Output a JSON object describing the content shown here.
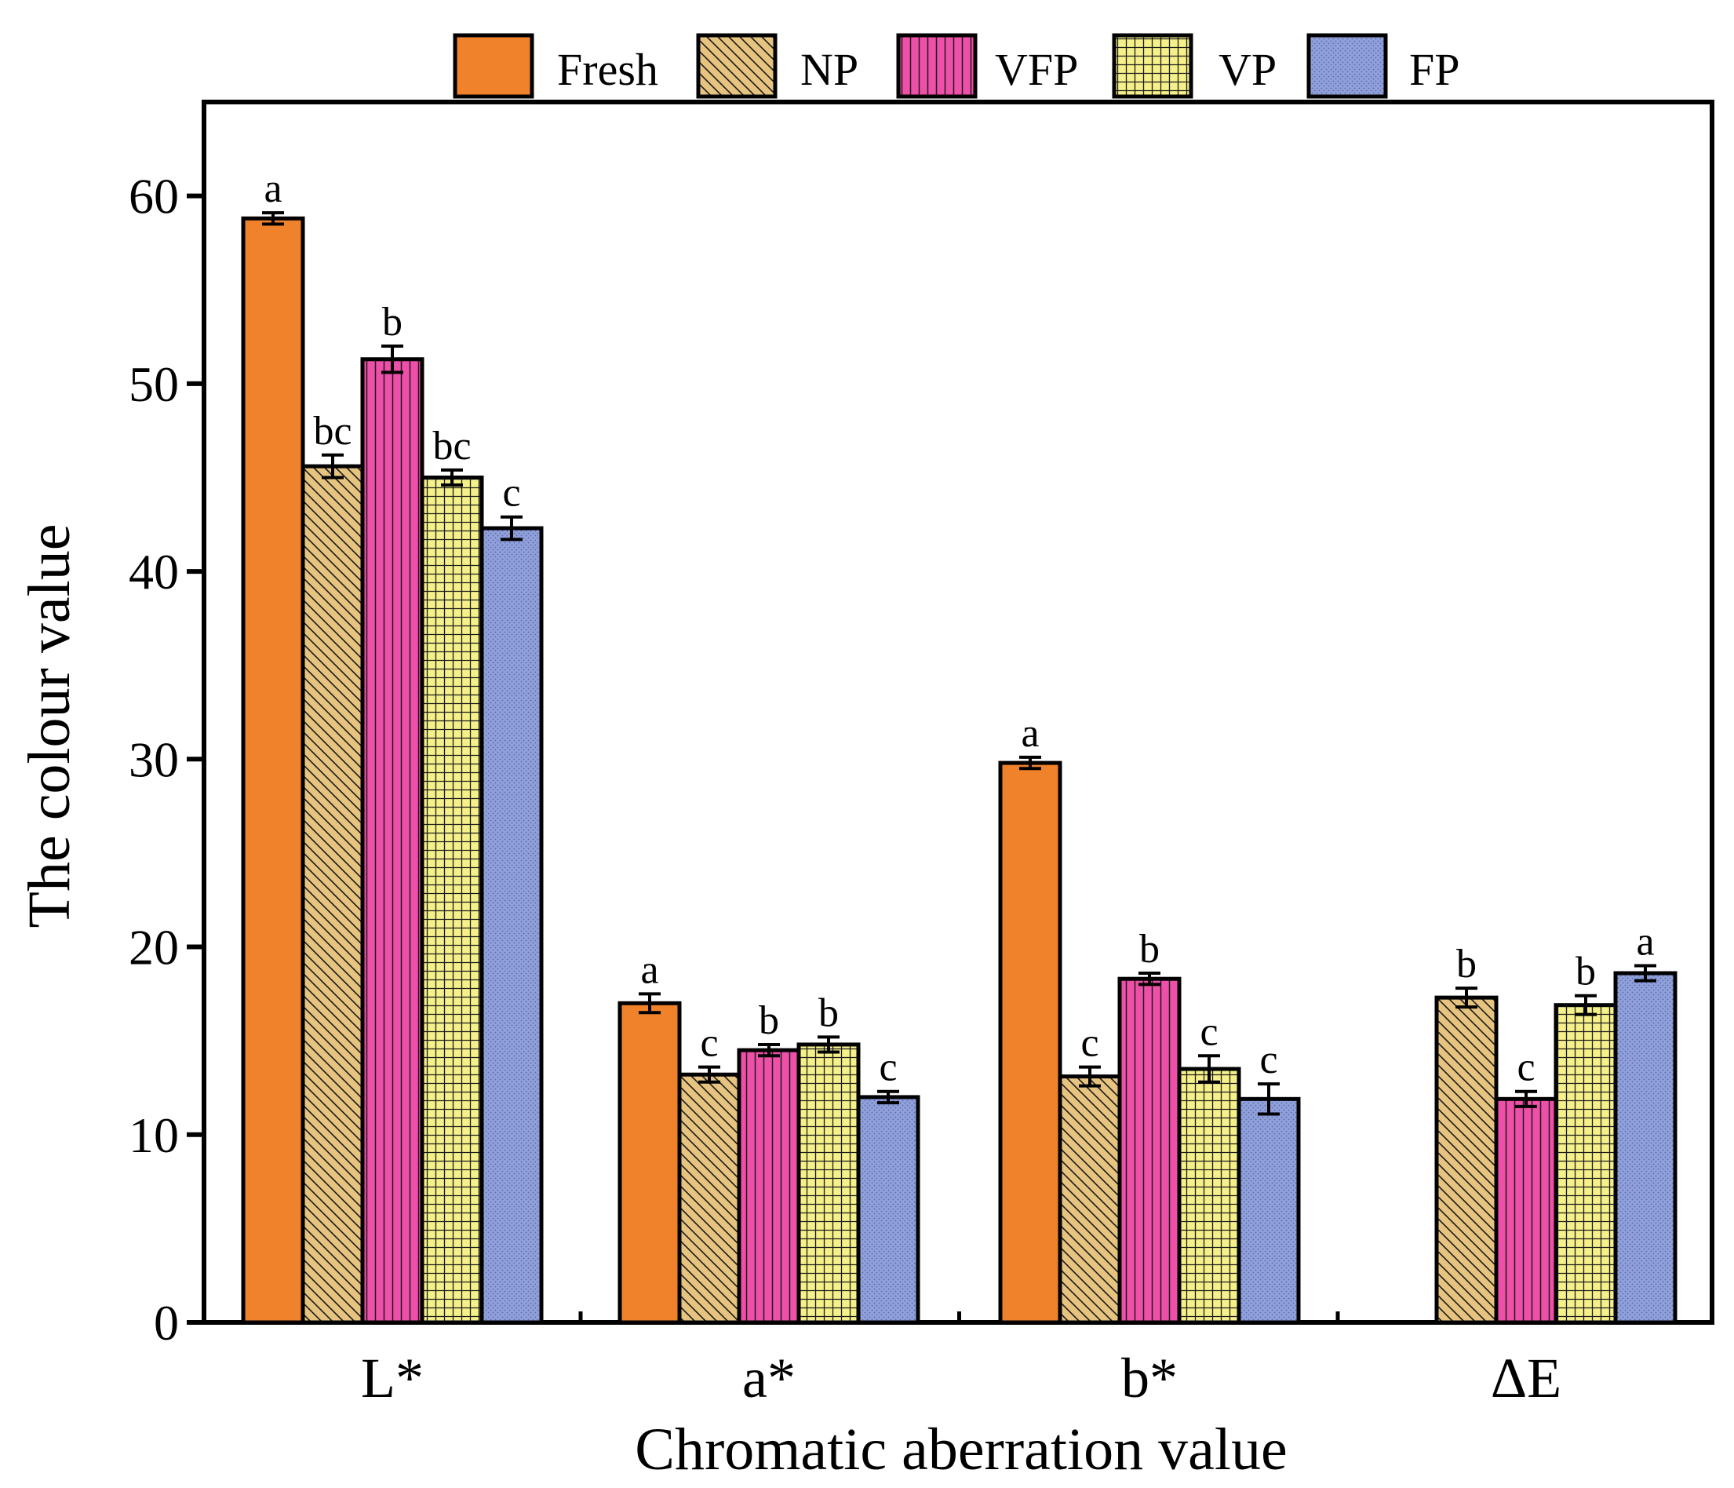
{
  "chart_data": {
    "type": "bar",
    "title": "",
    "xlabel": "Chromatic aberration value",
    "ylabel": "The colour value",
    "ylim": [
      0,
      65
    ],
    "yticks": [
      0,
      10,
      20,
      30,
      40,
      50,
      60
    ],
    "grid": false,
    "legend_position": "top",
    "categories": [
      "L*",
      "a*",
      "b*",
      "ΔE"
    ],
    "series": [
      {
        "name": "Fresh",
        "color": "#F0822B",
        "pattern": "solid",
        "values": [
          58.8,
          17.0,
          29.8,
          null
        ],
        "errors": [
          0.3,
          0.5,
          0.3,
          null
        ],
        "labels": [
          "a",
          "a",
          "a",
          ""
        ]
      },
      {
        "name": "NP",
        "color": "#E6C47F",
        "pattern": "diagonal",
        "values": [
          45.6,
          13.2,
          13.1,
          17.3
        ],
        "errors": [
          0.6,
          0.4,
          0.5,
          0.5
        ],
        "labels": [
          "bc",
          "c",
          "c",
          "b"
        ]
      },
      {
        "name": "VFP",
        "color": "#EE4FA8",
        "pattern": "vertical",
        "values": [
          51.3,
          14.5,
          18.3,
          11.9
        ],
        "errors": [
          0.7,
          0.3,
          0.3,
          0.4
        ],
        "labels": [
          "b",
          "b",
          "b",
          "c"
        ]
      },
      {
        "name": "VP",
        "color": "#F5F08A",
        "pattern": "grid",
        "values": [
          45.0,
          14.8,
          13.5,
          16.9
        ],
        "errors": [
          0.4,
          0.4,
          0.7,
          0.5
        ],
        "labels": [
          "bc",
          "b",
          "c",
          "b"
        ]
      },
      {
        "name": "FP",
        "color": "#8FA0DA",
        "pattern": "dots",
        "values": [
          42.3,
          12.0,
          11.9,
          18.6
        ],
        "errors": [
          0.6,
          0.3,
          0.8,
          0.4
        ],
        "labels": [
          "c",
          "c",
          "c",
          "a"
        ]
      }
    ]
  }
}
